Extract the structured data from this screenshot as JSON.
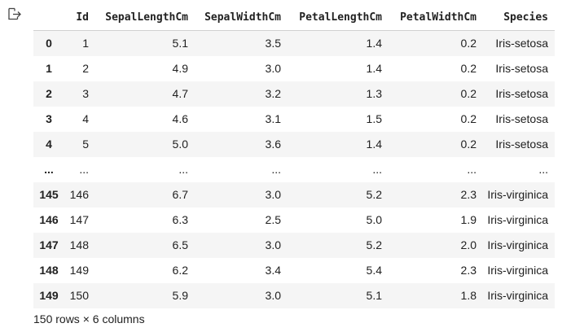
{
  "output_icon": "output-redirect-icon",
  "table": {
    "columns": [
      "",
      "Id",
      "SepalLengthCm",
      "SepalWidthCm",
      "PetalLengthCm",
      "PetalWidthCm",
      "Species"
    ],
    "rows": [
      [
        "0",
        "1",
        "5.1",
        "3.5",
        "1.4",
        "0.2",
        "Iris-setosa"
      ],
      [
        "1",
        "2",
        "4.9",
        "3.0",
        "1.4",
        "0.2",
        "Iris-setosa"
      ],
      [
        "2",
        "3",
        "4.7",
        "3.2",
        "1.3",
        "0.2",
        "Iris-setosa"
      ],
      [
        "3",
        "4",
        "4.6",
        "3.1",
        "1.5",
        "0.2",
        "Iris-setosa"
      ],
      [
        "4",
        "5",
        "5.0",
        "3.6",
        "1.4",
        "0.2",
        "Iris-setosa"
      ],
      [
        "...",
        "...",
        "...",
        "...",
        "...",
        "...",
        "..."
      ],
      [
        "145",
        "146",
        "6.7",
        "3.0",
        "5.2",
        "2.3",
        "Iris-virginica"
      ],
      [
        "146",
        "147",
        "6.3",
        "2.5",
        "5.0",
        "1.9",
        "Iris-virginica"
      ],
      [
        "147",
        "148",
        "6.5",
        "3.0",
        "5.2",
        "2.0",
        "Iris-virginica"
      ],
      [
        "148",
        "149",
        "6.2",
        "3.4",
        "5.4",
        "2.3",
        "Iris-virginica"
      ],
      [
        "149",
        "150",
        "5.9",
        "3.0",
        "5.1",
        "1.8",
        "Iris-virginica"
      ]
    ]
  },
  "summary": "150 rows × 6 columns"
}
